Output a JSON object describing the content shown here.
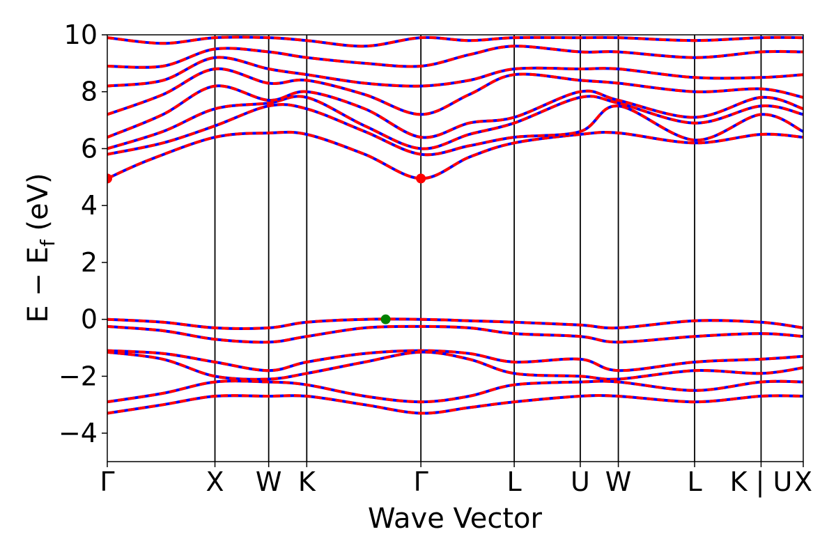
{
  "chart_data": {
    "type": "line",
    "title": "",
    "xlabel": "Wave Vector",
    "ylabel": "E − E",
    "ylabel_sub": "f",
    "ylabel_unit": " (eV)",
    "ylim": [
      -5,
      10
    ],
    "yticks": [
      -4,
      -2,
      0,
      2,
      4,
      6,
      8,
      10
    ],
    "ytick_labels": [
      "−4",
      "−2",
      "0",
      "2",
      "4",
      "6",
      "8",
      "10"
    ],
    "xlim": [
      0,
      1
    ],
    "kpoints": [
      {
        "label": "Γ",
        "x": 0.0
      },
      {
        "label": "X",
        "x": 0.1547
      },
      {
        "label": "W",
        "x": 0.2319
      },
      {
        "label": "K",
        "x": 0.2866
      },
      {
        "label": "Γ",
        "x": 0.4506
      },
      {
        "label": "L",
        "x": 0.5847
      },
      {
        "label": "U",
        "x": 0.6796
      },
      {
        "label": "W",
        "x": 0.7343
      },
      {
        "label": "L",
        "x": 0.8439
      },
      {
        "label": "K | U",
        "x": 0.9394
      },
      {
        "label": "X",
        "x": 1.0
      }
    ],
    "grid": false,
    "legend": "none",
    "colors": {
      "up_band": "#ff0000",
      "down_band": "#0000ff",
      "cbm_marker": "#ff0000",
      "vbm_marker": "#008000",
      "kpoint_line": "#000000"
    },
    "series": [
      {
        "kind": "band",
        "points": [
          [
            0.0,
            4.95
          ],
          [
            0.06,
            5.6
          ],
          [
            0.1547,
            6.4
          ],
          [
            0.2319,
            6.55
          ],
          [
            0.2866,
            6.5
          ],
          [
            0.37,
            5.8
          ],
          [
            0.4506,
            4.95
          ],
          [
            0.52,
            5.7
          ],
          [
            0.5847,
            6.2
          ],
          [
            0.6796,
            6.5
          ],
          [
            0.7343,
            6.55
          ],
          [
            0.8439,
            6.2
          ],
          [
            0.9394,
            6.5
          ],
          [
            1.0,
            6.4
          ]
        ]
      },
      {
        "kind": "band",
        "points": [
          [
            0.0,
            5.8
          ],
          [
            0.08,
            6.2
          ],
          [
            0.1547,
            6.8
          ],
          [
            0.2319,
            7.5
          ],
          [
            0.2866,
            7.4
          ],
          [
            0.37,
            6.6
          ],
          [
            0.4506,
            5.8
          ],
          [
            0.52,
            6.1
          ],
          [
            0.5847,
            6.4
          ],
          [
            0.6796,
            6.6
          ],
          [
            0.7343,
            7.5
          ],
          [
            0.8439,
            6.3
          ],
          [
            0.9394,
            7.2
          ],
          [
            1.0,
            6.6
          ]
        ]
      },
      {
        "kind": "band",
        "points": [
          [
            0.0,
            6.0
          ],
          [
            0.08,
            6.6
          ],
          [
            0.1547,
            7.4
          ],
          [
            0.2319,
            7.6
          ],
          [
            0.2866,
            7.8
          ],
          [
            0.37,
            6.8
          ],
          [
            0.4506,
            6.0
          ],
          [
            0.52,
            6.5
          ],
          [
            0.5847,
            6.9
          ],
          [
            0.6796,
            7.8
          ],
          [
            0.7343,
            7.6
          ],
          [
            0.8439,
            6.9
          ],
          [
            0.9394,
            7.5
          ],
          [
            1.0,
            7.2
          ]
        ]
      },
      {
        "kind": "band",
        "points": [
          [
            0.0,
            6.4
          ],
          [
            0.08,
            7.2
          ],
          [
            0.1547,
            8.2
          ],
          [
            0.2319,
            7.7
          ],
          [
            0.2866,
            8.0
          ],
          [
            0.37,
            7.4
          ],
          [
            0.4506,
            6.4
          ],
          [
            0.52,
            6.9
          ],
          [
            0.5847,
            7.1
          ],
          [
            0.6796,
            8.0
          ],
          [
            0.7343,
            7.7
          ],
          [
            0.8439,
            7.1
          ],
          [
            0.9394,
            7.8
          ],
          [
            1.0,
            7.4
          ]
        ]
      },
      {
        "kind": "band",
        "points": [
          [
            0.0,
            7.2
          ],
          [
            0.08,
            7.9
          ],
          [
            0.1547,
            8.8
          ],
          [
            0.2319,
            8.3
          ],
          [
            0.2866,
            8.4
          ],
          [
            0.37,
            7.9
          ],
          [
            0.4506,
            7.2
          ],
          [
            0.52,
            7.9
          ],
          [
            0.5847,
            8.6
          ],
          [
            0.6796,
            8.4
          ],
          [
            0.7343,
            8.3
          ],
          [
            0.8439,
            8.0
          ],
          [
            0.9394,
            8.1
          ],
          [
            1.0,
            7.8
          ]
        ]
      },
      {
        "kind": "band",
        "points": [
          [
            0.0,
            8.2
          ],
          [
            0.08,
            8.4
          ],
          [
            0.1547,
            9.2
          ],
          [
            0.2319,
            8.8
          ],
          [
            0.2866,
            8.6
          ],
          [
            0.37,
            8.3
          ],
          [
            0.4506,
            8.2
          ],
          [
            0.52,
            8.4
          ],
          [
            0.5847,
            8.8
          ],
          [
            0.6796,
            8.8
          ],
          [
            0.7343,
            8.8
          ],
          [
            0.8439,
            8.5
          ],
          [
            0.9394,
            8.5
          ],
          [
            1.0,
            8.6
          ]
        ]
      },
      {
        "kind": "band",
        "points": [
          [
            0.0,
            8.9
          ],
          [
            0.08,
            8.9
          ],
          [
            0.1547,
            9.5
          ],
          [
            0.2319,
            9.4
          ],
          [
            0.2866,
            9.2
          ],
          [
            0.37,
            9.0
          ],
          [
            0.4506,
            8.9
          ],
          [
            0.52,
            9.3
          ],
          [
            0.5847,
            9.6
          ],
          [
            0.6796,
            9.4
          ],
          [
            0.7343,
            9.4
          ],
          [
            0.8439,
            9.2
          ],
          [
            0.9394,
            9.4
          ],
          [
            1.0,
            9.4
          ]
        ]
      },
      {
        "kind": "band",
        "points": [
          [
            0.0,
            9.9
          ],
          [
            0.08,
            9.7
          ],
          [
            0.1547,
            9.9
          ],
          [
            0.2319,
            9.9
          ],
          [
            0.2866,
            9.8
          ],
          [
            0.37,
            9.6
          ],
          [
            0.4506,
            9.9
          ],
          [
            0.52,
            9.8
          ],
          [
            0.5847,
            9.9
          ],
          [
            0.6796,
            9.9
          ],
          [
            0.7343,
            9.9
          ],
          [
            0.8439,
            9.8
          ],
          [
            0.9394,
            9.9
          ],
          [
            1.0,
            9.9
          ]
        ]
      },
      {
        "kind": "band",
        "points": [
          [
            0.0,
            0.0
          ],
          [
            0.08,
            -0.1
          ],
          [
            0.1547,
            -0.3
          ],
          [
            0.2319,
            -0.3
          ],
          [
            0.2866,
            -0.1
          ],
          [
            0.37,
            0.0
          ],
          [
            0.4506,
            0.0
          ],
          [
            0.52,
            -0.05
          ],
          [
            0.5847,
            -0.1
          ],
          [
            0.6796,
            -0.2
          ],
          [
            0.7343,
            -0.3
          ],
          [
            0.8439,
            -0.05
          ],
          [
            0.9394,
            -0.1
          ],
          [
            1.0,
            -0.3
          ]
        ]
      },
      {
        "kind": "band",
        "points": [
          [
            0.0,
            -0.25
          ],
          [
            0.08,
            -0.4
          ],
          [
            0.1547,
            -0.7
          ],
          [
            0.2319,
            -0.8
          ],
          [
            0.2866,
            -0.6
          ],
          [
            0.37,
            -0.3
          ],
          [
            0.4506,
            -0.25
          ],
          [
            0.52,
            -0.3
          ],
          [
            0.5847,
            -0.5
          ],
          [
            0.6796,
            -0.6
          ],
          [
            0.7343,
            -0.8
          ],
          [
            0.8439,
            -0.6
          ],
          [
            0.9394,
            -0.5
          ],
          [
            1.0,
            -0.6
          ]
        ]
      },
      {
        "kind": "band",
        "points": [
          [
            0.0,
            -1.1
          ],
          [
            0.08,
            -1.2
          ],
          [
            0.1547,
            -1.5
          ],
          [
            0.2319,
            -1.8
          ],
          [
            0.2866,
            -1.5
          ],
          [
            0.37,
            -1.2
          ],
          [
            0.4506,
            -1.1
          ],
          [
            0.52,
            -1.2
          ],
          [
            0.5847,
            -1.5
          ],
          [
            0.6796,
            -1.4
          ],
          [
            0.7343,
            -1.8
          ],
          [
            0.8439,
            -1.5
          ],
          [
            0.9394,
            -1.4
          ],
          [
            1.0,
            -1.3
          ]
        ]
      },
      {
        "kind": "band",
        "points": [
          [
            0.0,
            -1.15
          ],
          [
            0.08,
            -1.4
          ],
          [
            0.1547,
            -2.0
          ],
          [
            0.2319,
            -2.1
          ],
          [
            0.2866,
            -1.9
          ],
          [
            0.37,
            -1.5
          ],
          [
            0.4506,
            -1.15
          ],
          [
            0.52,
            -1.4
          ],
          [
            0.5847,
            -1.9
          ],
          [
            0.6796,
            -2.0
          ],
          [
            0.7343,
            -2.1
          ],
          [
            0.8439,
            -1.8
          ],
          [
            0.9394,
            -1.9
          ],
          [
            1.0,
            -1.7
          ]
        ]
      },
      {
        "kind": "band",
        "points": [
          [
            0.0,
            -2.9
          ],
          [
            0.08,
            -2.6
          ],
          [
            0.1547,
            -2.2
          ],
          [
            0.2319,
            -2.2
          ],
          [
            0.2866,
            -2.3
          ],
          [
            0.37,
            -2.7
          ],
          [
            0.4506,
            -2.9
          ],
          [
            0.52,
            -2.7
          ],
          [
            0.5847,
            -2.3
          ],
          [
            0.6796,
            -2.2
          ],
          [
            0.7343,
            -2.2
          ],
          [
            0.8439,
            -2.5
          ],
          [
            0.9394,
            -2.2
          ],
          [
            1.0,
            -2.2
          ]
        ]
      },
      {
        "kind": "band",
        "points": [
          [
            0.0,
            -3.3
          ],
          [
            0.08,
            -3.0
          ],
          [
            0.1547,
            -2.7
          ],
          [
            0.2319,
            -2.7
          ],
          [
            0.2866,
            -2.7
          ],
          [
            0.37,
            -3.0
          ],
          [
            0.4506,
            -3.3
          ],
          [
            0.52,
            -3.1
          ],
          [
            0.5847,
            -2.9
          ],
          [
            0.6796,
            -2.7
          ],
          [
            0.7343,
            -2.7
          ],
          [
            0.8439,
            -2.9
          ],
          [
            0.9394,
            -2.7
          ],
          [
            1.0,
            -2.7
          ]
        ]
      }
    ],
    "markers": [
      {
        "kind": "cbm",
        "x": 0.0,
        "y": 4.95
      },
      {
        "kind": "cbm",
        "x": 0.4506,
        "y": 4.95
      },
      {
        "kind": "vbm",
        "x": 0.4,
        "y": 0.0
      }
    ]
  }
}
